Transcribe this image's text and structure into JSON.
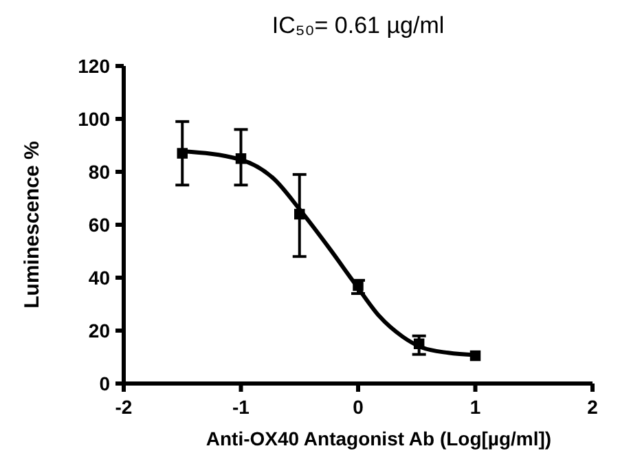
{
  "chart_data": {
    "type": "scatter",
    "title": "IC₅₀=   0.61 µg/ml",
    "xlabel": "Anti-OX40 Antagonist Ab (Log[µg/ml])",
    "ylabel": "Luminescence %",
    "xlim": [
      -2,
      2
    ],
    "xticks": [
      -2,
      -1,
      0,
      1,
      2
    ],
    "ylim": [
      0,
      120
    ],
    "yticks": [
      0,
      20,
      40,
      60,
      80,
      100,
      120
    ],
    "grid": false,
    "series": [
      {
        "color": "#000000",
        "marker": "square",
        "x": [
          -1.5,
          -1,
          -0.5,
          0,
          0.52,
          1
        ],
        "values": [
          87,
          85,
          64,
          37,
          15,
          10.5
        ],
        "errors": [
          [
            75,
            99
          ],
          [
            75,
            96
          ],
          [
            48,
            79
          ],
          [
            34,
            39
          ],
          [
            11,
            18
          ],
          null
        ]
      },
      {
        "type": "line",
        "color": "#000000",
        "marker": "none",
        "line_style": "solid",
        "x": [
          -1.5,
          -1.01,
          -0.72,
          -0.49,
          -0.25,
          -0.01,
          0.18,
          0.38,
          0.54,
          0.77,
          1.0
        ],
        "values": [
          87.8,
          84.7,
          77.4,
          65.3,
          51.4,
          36.7,
          25.5,
          17.7,
          13.7,
          11.6,
          10.8
        ]
      }
    ]
  }
}
